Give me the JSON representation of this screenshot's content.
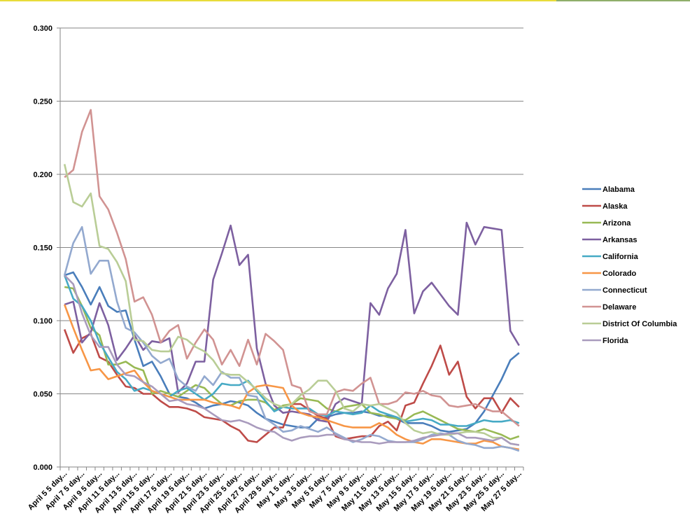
{
  "chart_data": {
    "type": "line",
    "title": "",
    "xlabel": "",
    "ylabel": "",
    "ylim": [
      0,
      0.3
    ],
    "y_ticks": [
      "0.000",
      "0.050",
      "0.100",
      "0.150",
      "0.200",
      "0.250",
      "0.300"
    ],
    "grid": "horizontal major gridlines",
    "legend_position": "right",
    "category_count": 53,
    "x_tick_labels": [
      "April 5 5 day...",
      "April 7 5 day...",
      "April 9 5 day...",
      "April 11 5 day...",
      "April 13 5 day...",
      "April 15 5 day...",
      "April 17 5 day...",
      "April 19 5 day...",
      "April 21 5 day...",
      "April 23 5 day...",
      "April 25 5 day...",
      "April 27 5 day...",
      "April 29 5 day...",
      "May 1 5 day...",
      "May 3 5 day...",
      "May 5 5 day...",
      "May 7 5 day...",
      "May 9 5 day...",
      "May 11 5 day...",
      "May 13 5 day...",
      "May 15 5 day...",
      "May 17 5 day...",
      "May 19 5 day...",
      "May 21 5 day...",
      "May 23 5 day...",
      "May 25 5 day...",
      "May 27 5 day..."
    ],
    "series": [
      {
        "name": "Alabama",
        "color": "#4A7EBB",
        "values": [
          0.131,
          0.133,
          0.123,
          0.111,
          0.123,
          0.11,
          0.106,
          0.107,
          0.087,
          0.069,
          0.072,
          0.062,
          0.05,
          0.048,
          0.047,
          0.044,
          0.04,
          0.042,
          0.043,
          0.045,
          0.044,
          0.042,
          0.037,
          0.033,
          0.031,
          0.029,
          0.028,
          0.027,
          0.027,
          0.033,
          0.034,
          0.036,
          0.037,
          0.037,
          0.038,
          0.037,
          0.035,
          0.035,
          0.033,
          0.03,
          0.03,
          0.03,
          0.028,
          0.025,
          0.024,
          0.025,
          0.026,
          0.03,
          0.038,
          0.049,
          0.06,
          0.073,
          0.078
        ]
      },
      {
        "name": "Alaska",
        "color": "#BE4B48",
        "values": [
          0.094,
          0.078,
          0.088,
          0.091,
          0.075,
          0.072,
          0.063,
          0.055,
          0.054,
          0.05,
          0.05,
          0.045,
          0.041,
          0.041,
          0.04,
          0.038,
          0.034,
          0.033,
          0.032,
          0.028,
          0.025,
          0.018,
          0.017,
          0.022,
          0.027,
          0.027,
          0.043,
          0.043,
          0.039,
          0.035,
          0.033,
          0.021,
          0.019,
          0.02,
          0.021,
          0.021,
          0.028,
          0.031,
          0.025,
          0.042,
          0.044,
          0.057,
          0.069,
          0.083,
          0.063,
          0.072,
          0.048,
          0.04,
          0.047,
          0.047,
          0.037,
          0.047,
          0.041
        ]
      },
      {
        "name": "Arizona",
        "color": "#98B954",
        "values": [
          0.123,
          0.122,
          0.11,
          0.095,
          0.09,
          0.07,
          0.07,
          0.072,
          0.068,
          0.066,
          0.05,
          0.052,
          0.05,
          0.048,
          0.052,
          0.056,
          0.054,
          0.048,
          0.043,
          0.042,
          0.045,
          0.046,
          0.046,
          0.044,
          0.039,
          0.042,
          0.043,
          0.047,
          0.046,
          0.045,
          0.04,
          0.038,
          0.041,
          0.042,
          0.043,
          0.037,
          0.036,
          0.034,
          0.033,
          0.032,
          0.036,
          0.038,
          0.035,
          0.032,
          0.029,
          0.026,
          0.025,
          0.024,
          0.026,
          0.024,
          0.022,
          0.019,
          0.021
        ]
      },
      {
        "name": "Arkansas",
        "color": "#7D60A0",
        "values": [
          0.111,
          0.113,
          0.085,
          0.092,
          0.112,
          0.097,
          0.073,
          0.081,
          0.09,
          0.08,
          0.086,
          0.085,
          0.088,
          0.051,
          0.057,
          0.072,
          0.072,
          0.128,
          0.146,
          0.165,
          0.138,
          0.145,
          0.081,
          0.057,
          0.042,
          0.037,
          0.038,
          0.037,
          0.036,
          0.032,
          0.031,
          0.043,
          0.047,
          0.045,
          0.043,
          0.112,
          0.104,
          0.122,
          0.132,
          0.162,
          0.105,
          0.12,
          0.126,
          0.118,
          0.11,
          0.104,
          0.167,
          0.152,
          0.164,
          0.163,
          0.162,
          0.093,
          0.083
        ]
      },
      {
        "name": "California",
        "color": "#46AAC5",
        "values": [
          0.131,
          0.115,
          0.11,
          0.1,
          0.085,
          0.075,
          0.065,
          0.06,
          0.052,
          0.054,
          0.052,
          0.05,
          0.048,
          0.052,
          0.054,
          0.05,
          0.046,
          0.05,
          0.057,
          0.056,
          0.056,
          0.059,
          0.052,
          0.045,
          0.038,
          0.041,
          0.04,
          0.04,
          0.04,
          0.036,
          0.035,
          0.038,
          0.037,
          0.036,
          0.037,
          0.042,
          0.038,
          0.036,
          0.034,
          0.031,
          0.032,
          0.033,
          0.032,
          0.029,
          0.029,
          0.028,
          0.028,
          0.03,
          0.032,
          0.031,
          0.031,
          0.032,
          0.03
        ]
      },
      {
        "name": "Colorado",
        "color": "#F79646",
        "values": [
          0.111,
          0.095,
          0.08,
          0.066,
          0.067,
          0.06,
          0.062,
          0.064,
          0.066,
          0.058,
          0.052,
          0.05,
          0.048,
          0.046,
          0.046,
          0.046,
          0.046,
          0.044,
          0.043,
          0.042,
          0.04,
          0.051,
          0.055,
          0.056,
          0.055,
          0.054,
          0.042,
          0.037,
          0.035,
          0.034,
          0.032,
          0.03,
          0.028,
          0.027,
          0.027,
          0.027,
          0.03,
          0.027,
          0.022,
          0.019,
          0.017,
          0.016,
          0.019,
          0.019,
          0.018,
          0.017,
          0.016,
          0.016,
          0.018,
          0.017,
          0.014,
          0.013,
          0.012
        ]
      },
      {
        "name": "Connecticut",
        "color": "#93A9CF",
        "values": [
          0.131,
          0.153,
          0.164,
          0.132,
          0.141,
          0.141,
          0.113,
          0.095,
          0.092,
          0.085,
          0.076,
          0.071,
          0.074,
          0.06,
          0.055,
          0.052,
          0.062,
          0.056,
          0.065,
          0.061,
          0.061,
          0.049,
          0.048,
          0.033,
          0.029,
          0.024,
          0.025,
          0.028,
          0.026,
          0.024,
          0.027,
          0.023,
          0.02,
          0.017,
          0.019,
          0.022,
          0.021,
          0.018,
          0.017,
          0.017,
          0.017,
          0.019,
          0.022,
          0.023,
          0.022,
          0.018,
          0.016,
          0.015,
          0.013,
          0.013,
          0.014,
          0.013,
          0.011
        ]
      },
      {
        "name": "Delaware",
        "color": "#D19392",
        "values": [
          0.198,
          0.203,
          0.229,
          0.244,
          0.185,
          0.176,
          0.16,
          0.142,
          0.113,
          0.116,
          0.104,
          0.085,
          0.093,
          0.097,
          0.074,
          0.085,
          0.094,
          0.087,
          0.07,
          0.08,
          0.069,
          0.087,
          0.07,
          0.091,
          0.086,
          0.08,
          0.056,
          0.054,
          0.038,
          0.036,
          0.036,
          0.051,
          0.053,
          0.052,
          0.057,
          0.061,
          0.043,
          0.043,
          0.045,
          0.051,
          0.05,
          0.052,
          0.049,
          0.048,
          0.042,
          0.041,
          0.042,
          0.043,
          0.04,
          0.038,
          0.038,
          0.033,
          0.028
        ]
      },
      {
        "name": "District Of Columbia",
        "color": "#B9CD96",
        "values": [
          0.207,
          0.181,
          0.178,
          0.187,
          0.151,
          0.149,
          0.14,
          0.127,
          0.087,
          0.086,
          0.08,
          0.079,
          0.079,
          0.089,
          0.087,
          0.082,
          0.079,
          0.073,
          0.064,
          0.063,
          0.063,
          0.058,
          0.053,
          0.047,
          0.043,
          0.041,
          0.043,
          0.049,
          0.053,
          0.059,
          0.059,
          0.052,
          0.04,
          0.038,
          0.043,
          0.042,
          0.043,
          0.04,
          0.037,
          0.03,
          0.025,
          0.023,
          0.024,
          0.022,
          0.022,
          0.023,
          0.024,
          0.024,
          0.023,
          0.02,
          0.02,
          0.016,
          0.015
        ]
      },
      {
        "name": "Florida",
        "color": "#A99BBD",
        "values": [
          0.131,
          0.125,
          0.105,
          0.09,
          0.082,
          0.082,
          0.07,
          0.063,
          0.062,
          0.058,
          0.055,
          0.05,
          0.045,
          0.046,
          0.043,
          0.042,
          0.04,
          0.036,
          0.032,
          0.031,
          0.032,
          0.03,
          0.027,
          0.025,
          0.024,
          0.02,
          0.018,
          0.02,
          0.021,
          0.021,
          0.022,
          0.022,
          0.019,
          0.018,
          0.017,
          0.017,
          0.016,
          0.017,
          0.017,
          0.017,
          0.018,
          0.02,
          0.021,
          0.022,
          0.023,
          0.023,
          0.02,
          0.02,
          0.019,
          0.018,
          0.02,
          0.016,
          0.015
        ]
      }
    ]
  }
}
